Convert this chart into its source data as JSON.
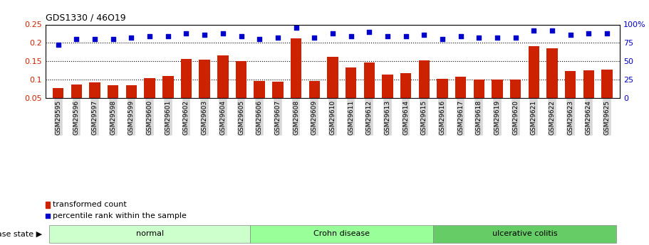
{
  "title": "GDS1330 / 46O19",
  "samples": [
    "GSM29595",
    "GSM29596",
    "GSM29597",
    "GSM29598",
    "GSM29599",
    "GSM29600",
    "GSM29601",
    "GSM29602",
    "GSM29603",
    "GSM29604",
    "GSM29605",
    "GSM29606",
    "GSM29607",
    "GSM29608",
    "GSM29609",
    "GSM29610",
    "GSM29611",
    "GSM29612",
    "GSM29613",
    "GSM29614",
    "GSM29615",
    "GSM29616",
    "GSM29617",
    "GSM29618",
    "GSM29619",
    "GSM29620",
    "GSM29621",
    "GSM29622",
    "GSM29623",
    "GSM29624",
    "GSM29625"
  ],
  "transformed_count": [
    0.078,
    0.087,
    0.092,
    0.085,
    0.085,
    0.105,
    0.109,
    0.157,
    0.155,
    0.165,
    0.15,
    0.097,
    0.095,
    0.213,
    0.097,
    0.163,
    0.133,
    0.147,
    0.113,
    0.117,
    0.153,
    0.103,
    0.108,
    0.101,
    0.101,
    0.1,
    0.192,
    0.185,
    0.124,
    0.126,
    0.127
  ],
  "percentile_rank": [
    72,
    80,
    80,
    80,
    82,
    84,
    84,
    88,
    86,
    88,
    84,
    80,
    82,
    96,
    82,
    88,
    84,
    90,
    84,
    84,
    86,
    80,
    84,
    82,
    82,
    82,
    92,
    92,
    86,
    88,
    88
  ],
  "groups": [
    {
      "label": "normal",
      "start": 0,
      "end": 10,
      "color": "#ccffcc"
    },
    {
      "label": "Crohn disease",
      "start": 11,
      "end": 20,
      "color": "#99ff99"
    },
    {
      "label": "ulcerative colitis",
      "start": 21,
      "end": 30,
      "color": "#66cc66"
    }
  ],
  "bar_color": "#cc2200",
  "dot_color": "#0000cc",
  "ylim_left": [
    0.05,
    0.25
  ],
  "ylim_right": [
    0,
    100
  ],
  "yticks_left": [
    0.05,
    0.1,
    0.15,
    0.2,
    0.25
  ],
  "yticks_right": [
    0,
    25,
    50,
    75,
    100
  ],
  "yticks_right_labels": [
    "0",
    "25",
    "50",
    "75",
    "100%"
  ],
  "grid_values": [
    0.1,
    0.15,
    0.2
  ],
  "legend_bar_label": "transformed count",
  "legend_dot_label": "percentile rank within the sample",
  "disease_state_label": "disease state",
  "tick_bg_color": "#d8d8d8",
  "background_color": "#ffffff"
}
